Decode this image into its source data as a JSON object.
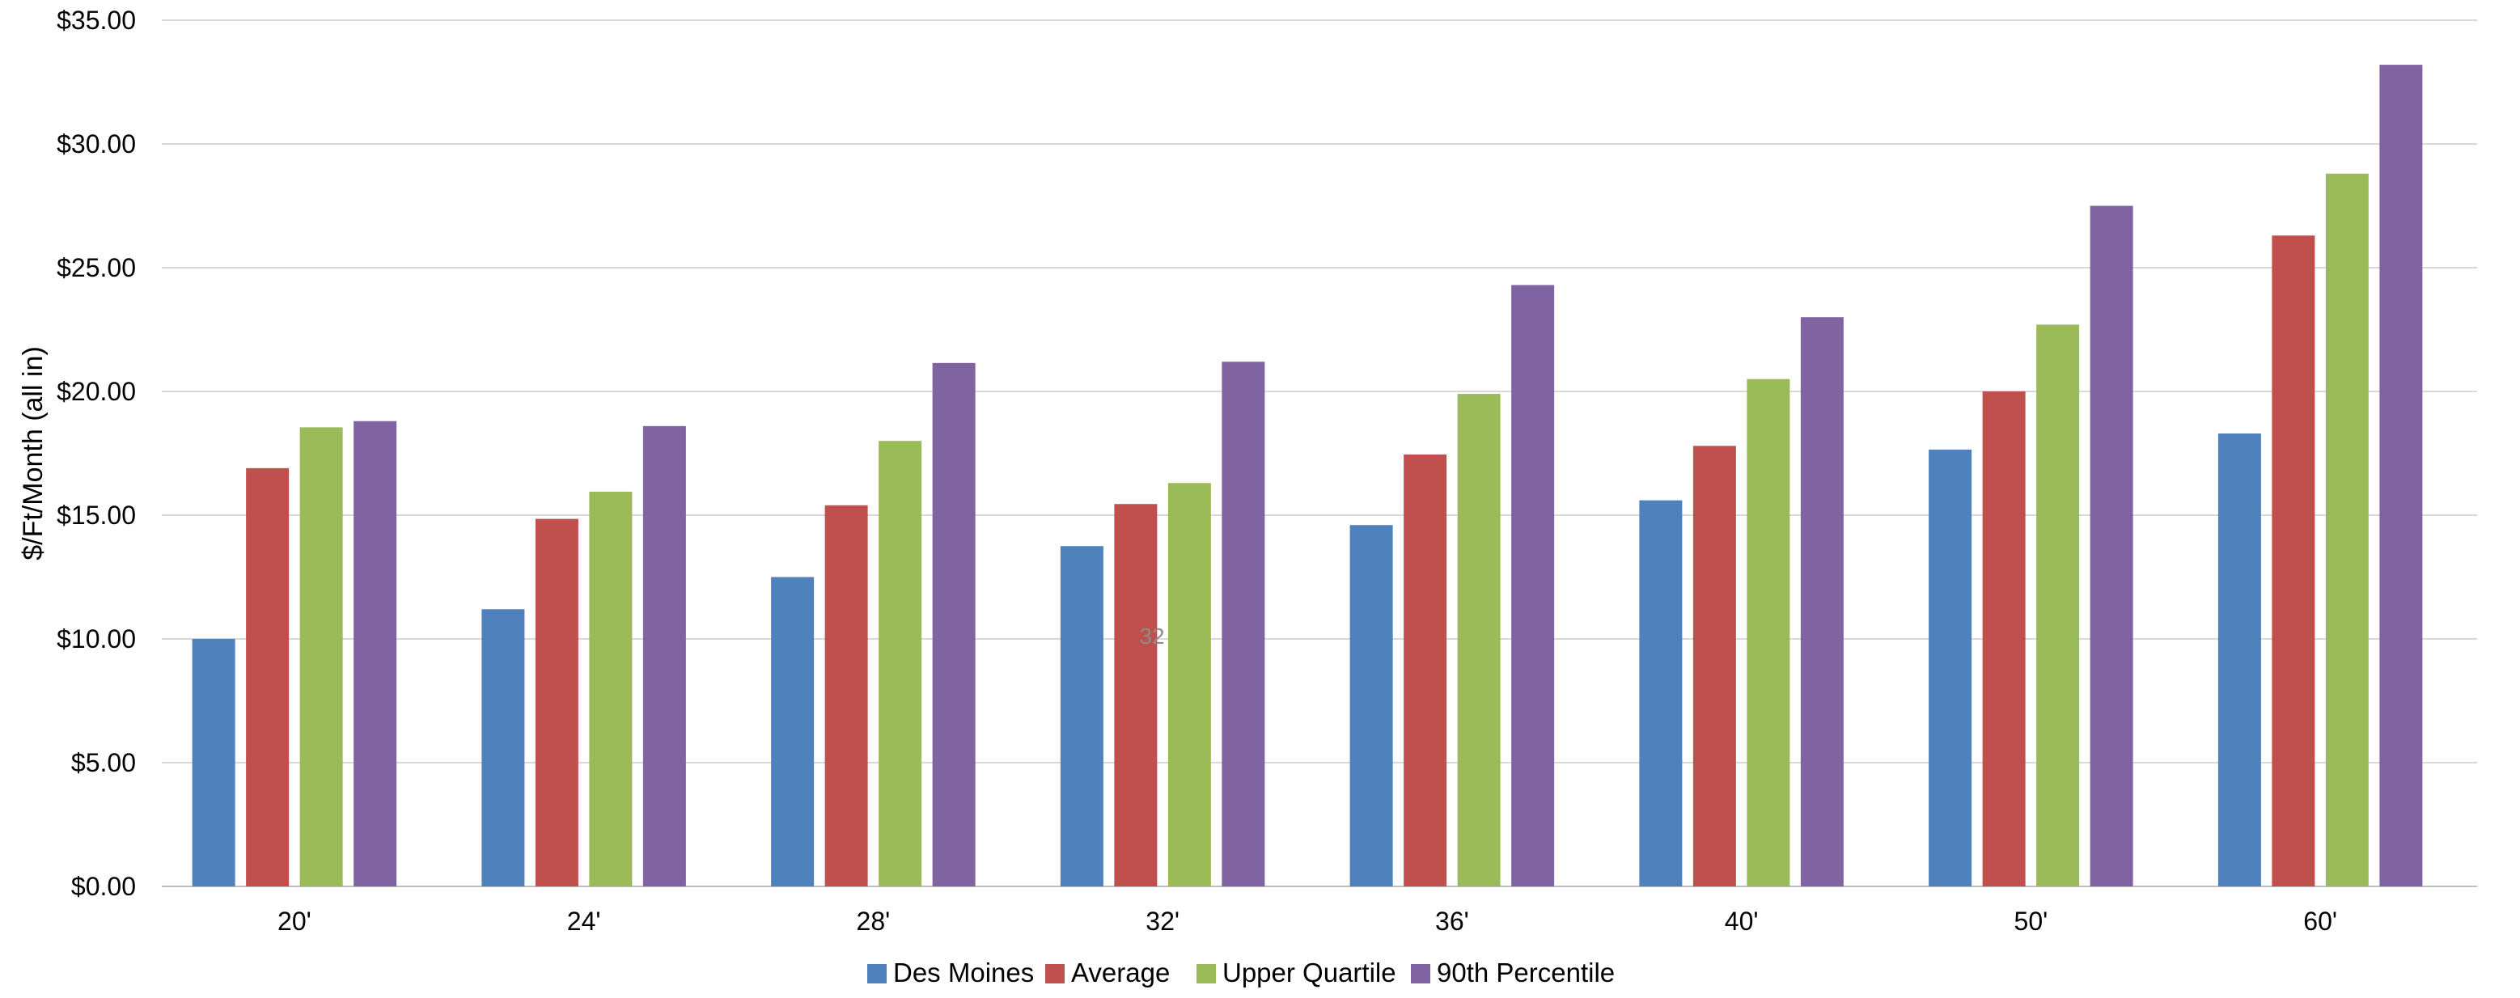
{
  "chart_data": {
    "type": "bar",
    "title": "",
    "xlabel": "",
    "ylabel": "$/Ft/Month (all in)",
    "ylim": [
      0,
      35
    ],
    "y_ticks": [
      0,
      5,
      10,
      15,
      20,
      25,
      30,
      35
    ],
    "y_tick_labels": [
      "$0.00",
      "$5.00",
      "$10.00",
      "$15.00",
      "$20.00",
      "$25.00",
      "$30.00",
      "$35.00"
    ],
    "categories": [
      "20'",
      "24'",
      "28'",
      "32'",
      "36'",
      "40'",
      "50'",
      "60'"
    ],
    "series": [
      {
        "name": "Des Moines",
        "color": "#4F81BD",
        "values": [
          10.0,
          11.2,
          12.5,
          13.75,
          14.6,
          15.6,
          17.65,
          18.3
        ]
      },
      {
        "name": "Average",
        "color": "#C0504D",
        "values": [
          16.9,
          14.85,
          15.4,
          15.45,
          17.45,
          17.8,
          20.0,
          26.3
        ]
      },
      {
        "name": "Upper Quartile",
        "color": "#9BBB59",
        "values": [
          18.55,
          15.95,
          18.0,
          16.3,
          19.9,
          20.5,
          22.7,
          28.8
        ]
      },
      {
        "name": "90th Percentile",
        "color": "#8064A2",
        "values": [
          18.8,
          18.6,
          21.15,
          21.2,
          24.3,
          23.0,
          27.5,
          33.2
        ]
      }
    ],
    "annotation": "32",
    "grid": true,
    "legend_position": "bottom"
  }
}
